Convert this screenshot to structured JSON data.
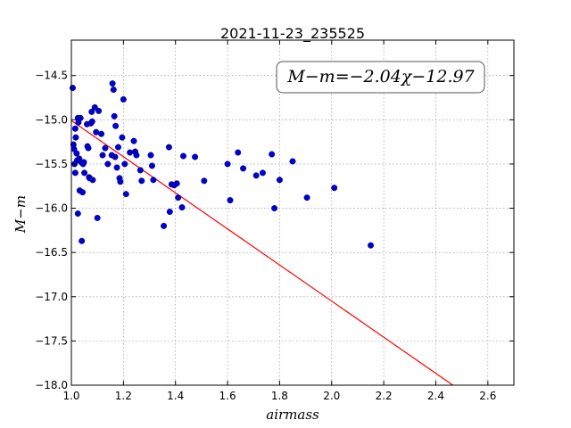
{
  "chart_data": {
    "type": "scatter",
    "title": "2021-11-23_235525",
    "xlabel": "airmass",
    "ylabel": "M−m",
    "annotation": "M−m=−2.04χ−12.97",
    "xlim": [
      1.0,
      2.7
    ],
    "ylim": [
      -18.0,
      -14.1
    ],
    "xticks": [
      1.0,
      1.2,
      1.4,
      1.6,
      1.8,
      2.0,
      2.2,
      2.4,
      2.6
    ],
    "xtick_labels": [
      "1.0",
      "1.2",
      "1.4",
      "1.6",
      "1.8",
      "2.0",
      "2.2",
      "2.4",
      "2.6"
    ],
    "yticks": [
      -14.5,
      -15.0,
      -15.5,
      -16.0,
      -16.5,
      -17.0,
      -17.5,
      -18.0
    ],
    "ytick_labels": [
      "−14.5",
      "−15.0",
      "−15.5",
      "−16.0",
      "−16.5",
      "−17.0",
      "−17.5",
      "−18.0"
    ],
    "grid": true,
    "fit": {
      "slope": -2.04,
      "intercept": -12.97,
      "color": "#ff0000"
    },
    "point_color": "#0000cc",
    "points": [
      [
        1.005,
        -14.64
      ],
      [
        1.008,
        -15.28
      ],
      [
        1.01,
        -15.33
      ],
      [
        1.012,
        -15.5
      ],
      [
        1.015,
        -15.1
      ],
      [
        1.017,
        -15.2
      ],
      [
        1.02,
        -15.38
      ],
      [
        1.022,
        -15.46
      ],
      [
        1.025,
        -14.98
      ],
      [
        1.027,
        -15.03
      ],
      [
        1.03,
        -15.44
      ],
      [
        1.032,
        -15.8
      ],
      [
        1.035,
        -14.98
      ],
      [
        1.038,
        -15.48
      ],
      [
        1.04,
        -16.37
      ],
      [
        1.043,
        -15.82
      ],
      [
        1.045,
        -15.5
      ],
      [
        1.048,
        -15.48
      ],
      [
        1.05,
        -15.6
      ],
      [
        1.015,
        -15.6
      ],
      [
        1.025,
        -16.06
      ],
      [
        1.06,
        -15.05
      ],
      [
        1.062,
        -15.3
      ],
      [
        1.065,
        -15.32
      ],
      [
        1.068,
        -15.65
      ],
      [
        1.07,
        -15.66
      ],
      [
        1.075,
        -15.04
      ],
      [
        1.078,
        -14.91
      ],
      [
        1.08,
        -15.02
      ],
      [
        1.082,
        -15.68
      ],
      [
        1.09,
        -14.86
      ],
      [
        1.095,
        -15.14
      ],
      [
        1.1,
        -16.11
      ],
      [
        1.105,
        -14.9
      ],
      [
        1.115,
        -15.16
      ],
      [
        1.12,
        -15.4
      ],
      [
        1.13,
        -15.32
      ],
      [
        1.14,
        -15.5
      ],
      [
        1.155,
        -15.4
      ],
      [
        1.158,
        -14.59
      ],
      [
        1.162,
        -14.66
      ],
      [
        1.165,
        -14.96
      ],
      [
        1.168,
        -15.42
      ],
      [
        1.17,
        -15.07
      ],
      [
        1.175,
        -15.54
      ],
      [
        1.18,
        -15.31
      ],
      [
        1.185,
        -15.66
      ],
      [
        1.188,
        -15.7
      ],
      [
        1.195,
        -15.2
      ],
      [
        1.2,
        -14.77
      ],
      [
        1.205,
        -15.5
      ],
      [
        1.21,
        -15.84
      ],
      [
        1.225,
        -15.37
      ],
      [
        1.24,
        -15.24
      ],
      [
        1.245,
        -15.36
      ],
      [
        1.25,
        -15.4
      ],
      [
        1.265,
        -15.57
      ],
      [
        1.27,
        -15.69
      ],
      [
        1.305,
        -15.4
      ],
      [
        1.31,
        -15.52
      ],
      [
        1.315,
        -15.68
      ],
      [
        1.355,
        -16.2
      ],
      [
        1.375,
        -15.31
      ],
      [
        1.378,
        -16.04
      ],
      [
        1.385,
        -15.73
      ],
      [
        1.395,
        -15.74
      ],
      [
        1.405,
        -15.72
      ],
      [
        1.41,
        -15.88
      ],
      [
        1.425,
        -15.99
      ],
      [
        1.43,
        -15.41
      ],
      [
        1.475,
        -15.42
      ],
      [
        1.51,
        -15.69
      ],
      [
        1.6,
        -15.5
      ],
      [
        1.61,
        -15.91
      ],
      [
        1.64,
        -15.37
      ],
      [
        1.66,
        -15.55
      ],
      [
        1.71,
        -15.63
      ],
      [
        1.735,
        -15.6
      ],
      [
        1.77,
        -15.39
      ],
      [
        1.78,
        -16.0
      ],
      [
        1.8,
        -15.68
      ],
      [
        1.85,
        -15.47
      ],
      [
        1.905,
        -15.88
      ],
      [
        2.01,
        -15.77
      ],
      [
        2.15,
        -16.42
      ]
    ]
  }
}
